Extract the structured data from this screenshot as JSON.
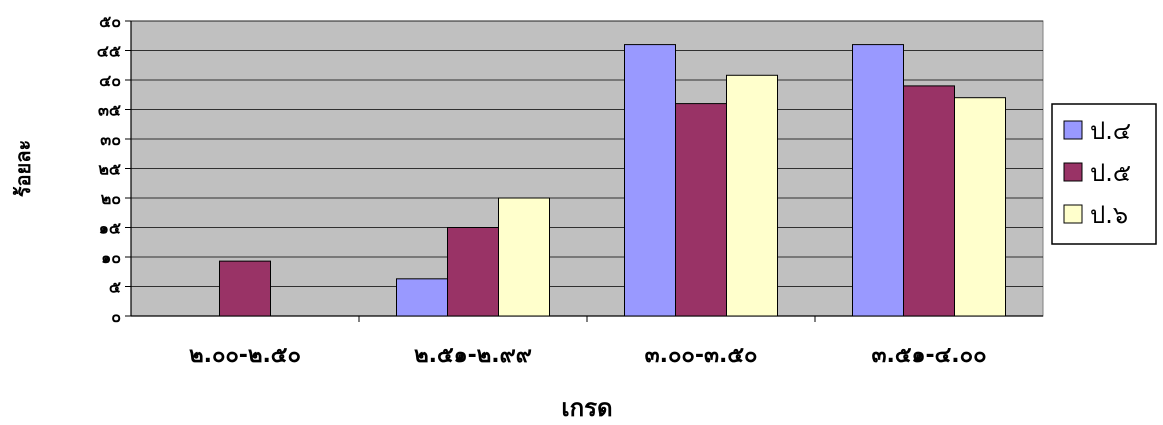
{
  "chart_data": {
    "type": "bar",
    "title": "",
    "xlabel": "เกรด",
    "ylabel": "ร้อยละ",
    "categories": [
      "๒.๐๐-๒.๕๐",
      "๒.๕๑-๒.๙๙",
      "๓.๐๐-๓.๕๐",
      "๓.๕๑-๔.๐๐"
    ],
    "series": [
      {
        "name": "ป.๔",
        "color": "#9999ff",
        "values": [
          0,
          6.3,
          46,
          46
        ]
      },
      {
        "name": "ป.๕",
        "color": "#993366",
        "values": [
          9.3,
          15,
          36,
          39
        ]
      },
      {
        "name": "ป.๖",
        "color": "#ffffcc",
        "values": [
          0,
          20,
          40.8,
          37
        ]
      }
    ],
    "ylim": [
      0,
      50
    ],
    "yticks": [
      0,
      5,
      10,
      15,
      20,
      25,
      30,
      35,
      40,
      45,
      50
    ],
    "ytick_labels": [
      "๐",
      "๕",
      "๑๐",
      "๑๕",
      "๒๐",
      "๒๕",
      "๓๐",
      "๓๕",
      "๔๐",
      "๔๕",
      "๕๐"
    ],
    "grid": true,
    "legend_position": "right",
    "plot_background": "#c0c0c0"
  }
}
